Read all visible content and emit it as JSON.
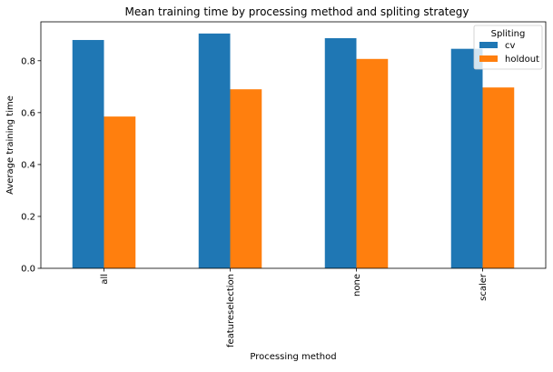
{
  "chart_data": {
    "type": "bar",
    "title": "Mean training time by processing method and spliting strategy",
    "xlabel": "Processing method",
    "ylabel": "Average training time",
    "categories": [
      "all",
      "featureselection",
      "none",
      "scaler"
    ],
    "series": [
      {
        "name": "cv",
        "values": [
          0.88,
          0.905,
          0.887,
          0.846
        ],
        "color": "#1f77b4"
      },
      {
        "name": "holdout",
        "values": [
          0.585,
          0.69,
          0.807,
          0.697
        ],
        "color": "#ff7f0e"
      }
    ],
    "yticks": [
      0.0,
      0.2,
      0.4,
      0.6,
      0.8
    ],
    "ytick_labels": [
      "0.0",
      "0.2",
      "0.4",
      "0.6",
      "0.8"
    ],
    "ylim": [
      0,
      0.95
    ],
    "legend": {
      "title": "Spliting",
      "placement": "top-right"
    },
    "grid": false
  }
}
